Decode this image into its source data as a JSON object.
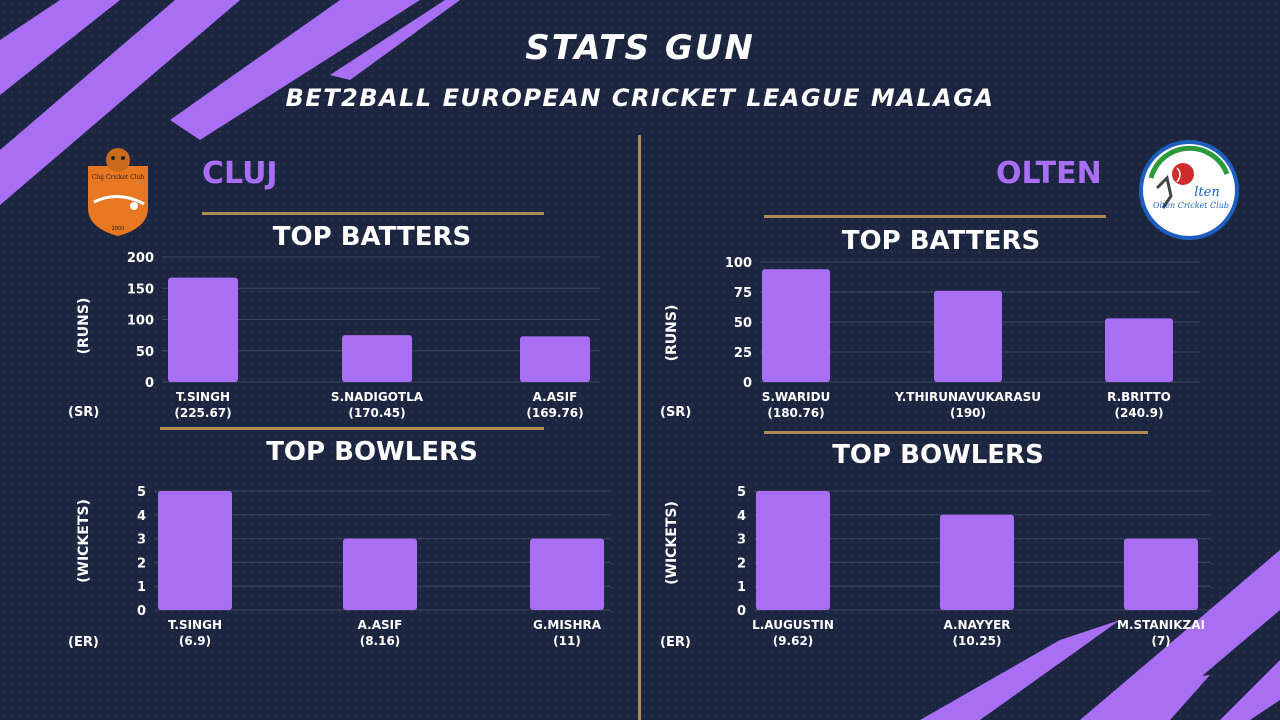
{
  "header": {
    "title": "STATS GUN",
    "subtitle": "BET2BALL EUROPEAN CRICKET LEAGUE MALAGA"
  },
  "colors": {
    "background": "#1c2640",
    "accent_purple": "#a86ff5",
    "bar": "#a86ff5",
    "gold": "#b08a4e"
  },
  "left_team": {
    "name": "CLUJ",
    "logo_text": "Cluj Cricket Club",
    "logo_year": "2000",
    "batters_title": "TOP BATTERS",
    "bowlers_title": "TOP BOWLERS",
    "batters_axis": "(RUNS)",
    "bowlers_axis": "(WICKETS)",
    "sr_label": "(SR)",
    "er_label": "(ER)"
  },
  "right_team": {
    "name": "OLTEN",
    "logo_text": "Olten Cricket Club",
    "logo_mark": "lten",
    "batters_title": "TOP BATTERS",
    "bowlers_title": "TOP BOWLERS",
    "batters_axis": "(RUNS)",
    "bowlers_axis": "(WICKETS)",
    "sr_label": "(SR)",
    "er_label": "(ER)"
  },
  "chart_data": [
    {
      "id": "cluj-batters",
      "type": "bar",
      "title": "TOP BATTERS",
      "ylabel": "(RUNS)",
      "categories": [
        "T.SINGH",
        "S.NADIGOTLA",
        "A.ASIF"
      ],
      "secondary_labels": [
        "(225.67)",
        "(170.45)",
        "(169.76)"
      ],
      "values": [
        167,
        75,
        73
      ],
      "ylim": [
        0,
        200
      ],
      "yticks": [
        0,
        50,
        100,
        150,
        200
      ],
      "grid": true
    },
    {
      "id": "cluj-bowlers",
      "type": "bar",
      "title": "TOP BOWLERS",
      "ylabel": "(WICKETS)",
      "categories": [
        "T.SINGH",
        "A.ASIF",
        "G.MISHRA"
      ],
      "secondary_labels": [
        "(6.9)",
        "(8.16)",
        "(11)"
      ],
      "values": [
        5,
        3,
        3
      ],
      "ylim": [
        0,
        5
      ],
      "yticks": [
        0,
        1,
        2,
        3,
        4,
        5
      ],
      "grid": true
    },
    {
      "id": "olten-batters",
      "type": "bar",
      "title": "TOP BATTERS",
      "ylabel": "(RUNS)",
      "categories": [
        "S.WARIDU",
        "Y.THIRUNAVUKARASU",
        "R.BRITTO"
      ],
      "secondary_labels": [
        "(180.76)",
        "(190)",
        "(240.9)"
      ],
      "values": [
        94,
        76,
        53
      ],
      "ylim": [
        0,
        100
      ],
      "yticks": [
        0,
        25,
        50,
        75,
        100
      ],
      "grid": true
    },
    {
      "id": "olten-bowlers",
      "type": "bar",
      "title": "TOP BOWLERS",
      "ylabel": "(WICKETS)",
      "categories": [
        "L.AUGUSTIN",
        "A.NAYYER",
        "M.STANIKZAI"
      ],
      "secondary_labels": [
        "(9.62)",
        "(10.25)",
        "(7)"
      ],
      "values": [
        5,
        4,
        3
      ],
      "ylim": [
        0,
        5
      ],
      "yticks": [
        0,
        1,
        2,
        3,
        4,
        5
      ],
      "grid": true
    }
  ]
}
